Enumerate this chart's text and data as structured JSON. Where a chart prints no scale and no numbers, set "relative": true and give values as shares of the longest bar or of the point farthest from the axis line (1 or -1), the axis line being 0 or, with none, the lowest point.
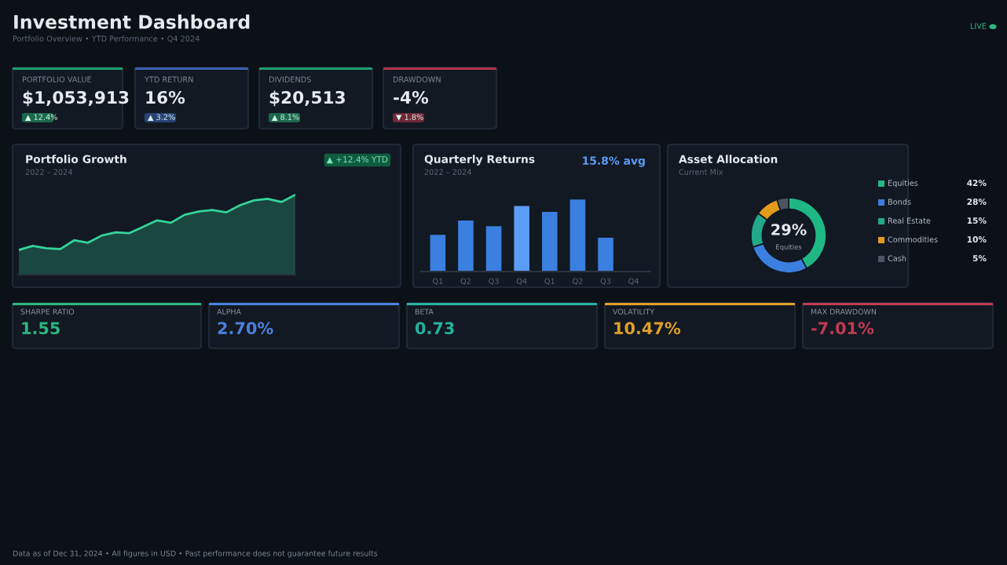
{
  "chart_data": [
    {
      "type": "other",
      "title": "Investment Dashboard",
      "subtitle": "Portfolio Overview • YTD Performance • Q4 2024",
      "annotations": [
        "PORTFOLIO VALUE",
        "$1,053,913",
        "▲ 12.4%",
        "YTD RETURN",
        "16%",
        "▲ 3.2%",
        "DIVIDENDS",
        "$20,513",
        "▲ 8.1%",
        "DRAWDOWN",
        "-4%",
        "▼ 1.8%",
        "LIVE"
      ],
      "colors": [
        "#1f9d6b",
        "#3b5fb0",
        "#1f9d6b",
        "#b0324a"
      ]
    },
    {
      "type": "area",
      "title": "Portfolio Growth",
      "subtitle": "2022 – 2024",
      "relative": true,
      "categories": [
        null,
        null,
        null,
        null,
        null,
        null,
        null,
        null,
        null,
        null,
        null,
        null,
        null,
        null,
        null,
        null,
        null,
        null,
        null,
        null,
        null
      ],
      "series": [
        {
          "color": "#34d399",
          "values": [
            0.31,
            0.36,
            0.33,
            0.32,
            0.43,
            0.4,
            0.49,
            0.53,
            0.52,
            0.6,
            0.68,
            0.65,
            0.75,
            0.79,
            0.81,
            0.78,
            0.87,
            0.93,
            0.95,
            0.91,
            1
          ]
        }
      ],
      "annotations": [
        "▲ +12.4% YTD"
      ]
    },
    {
      "type": "bar",
      "title": "Quarterly Returns",
      "subtitle": "2022 – 2024",
      "relative": true,
      "categories": [
        "Q1",
        "Q2",
        "Q3",
        "Q4",
        "Q1",
        "Q2",
        "Q3",
        "Q4"
      ],
      "values": [
        0.51,
        0.71,
        0.63,
        0.91,
        0.83,
        1,
        0.47,
        null
      ],
      "colors": [
        "#3b7fe0",
        "#3b7fe0",
        "#3b7fe0",
        "#5b9cf6",
        "#3b7fe0",
        "#3b7fe0",
        "#3b7fe0",
        "#3b7fe0"
      ],
      "annotations": [
        "15.8% avg"
      ]
    },
    {
      "type": "donut",
      "title": "Asset Allocation",
      "subtitle": "Current Mix",
      "categories": [
        "Equities",
        "Bonds",
        "Real Estate",
        "Commodities",
        "Cash"
      ],
      "values": [
        42,
        28,
        15,
        10,
        5
      ],
      "value_labels": [
        "42%",
        "28%",
        "15%",
        "10%",
        "5%"
      ],
      "colors": [
        "#1fb884",
        "#3b7fe0",
        "#22a98a",
        "#e39a1c",
        "#4b5563"
      ],
      "legend": "right",
      "annotations": [
        "29%",
        "Equities"
      ]
    },
    {
      "type": "other",
      "annotations": [
        "SHARPE RATIO",
        "1.55",
        "ALPHA",
        "2.70%",
        "BETA",
        "0.73",
        "VOLATILITY",
        "10.47%",
        "MAX DRAWDOWN",
        "-7.01%",
        "Data as of Dec 31, 2024 • All figures in USD • Past performance does not guarantee future results"
      ],
      "colors": [
        "#2bb77e",
        "#4a7fe0",
        "#25b3a0",
        "#e0a028",
        "#c23a52"
      ]
    }
  ]
}
